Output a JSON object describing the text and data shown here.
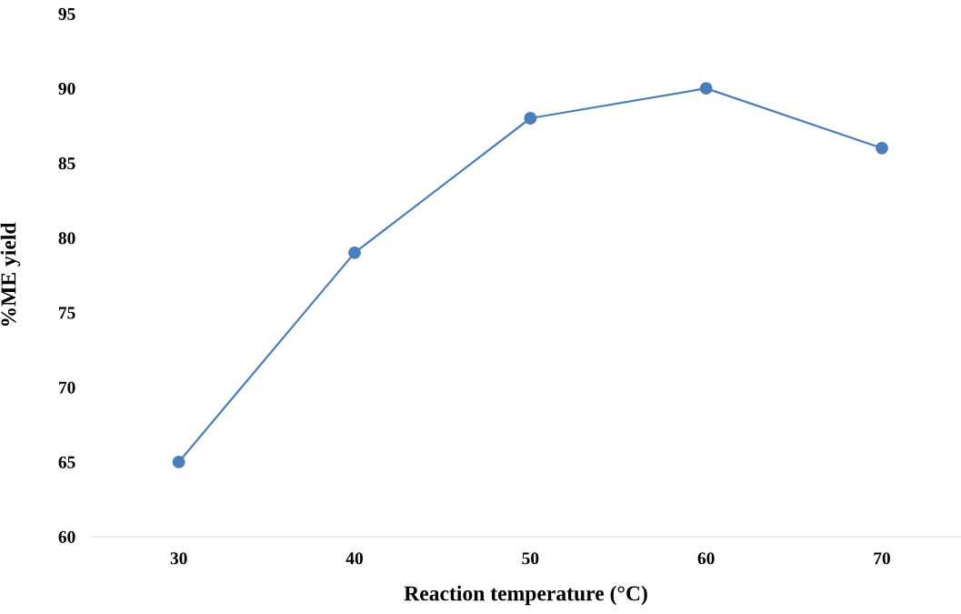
{
  "chart_data": {
    "type": "line",
    "xlabel": "Reaction temperature (°C)",
    "ylabel": "%ME yield",
    "categories": [
      "30",
      "40",
      "50",
      "60",
      "70"
    ],
    "series": [
      {
        "color": "#4a7ebb",
        "values": [
          65,
          79,
          88,
          90,
          86
        ]
      }
    ],
    "ylim": [
      60,
      95
    ],
    "yticks": [
      60,
      65,
      70,
      75,
      80,
      85,
      90,
      95
    ],
    "marker": "circle",
    "line_style": "solid",
    "grid": false,
    "legend": false
  }
}
